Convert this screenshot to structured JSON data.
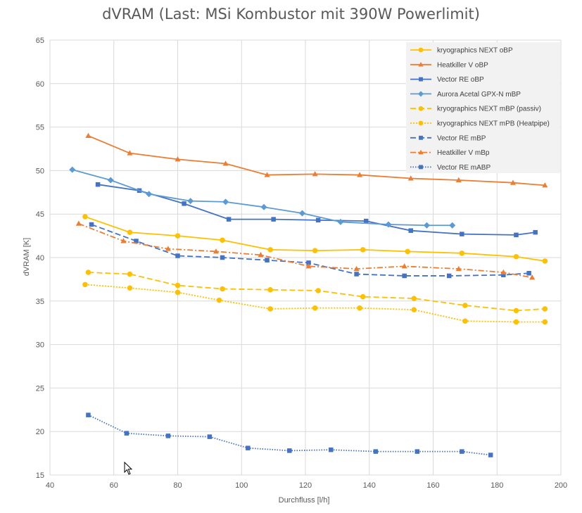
{
  "chart_data": {
    "type": "line",
    "title": "dVRAM (Last: MSi Kombustor mit 390W Powerlimit)",
    "xlabel": "Durchfluss [l/h]",
    "ylabel": "dVRAM [K]",
    "xlim": [
      40,
      200
    ],
    "ylim": [
      15,
      65
    ],
    "xticks": [
      40,
      60,
      80,
      100,
      120,
      140,
      160,
      180,
      200
    ],
    "yticks": [
      15,
      20,
      25,
      30,
      35,
      40,
      45,
      50,
      55,
      60,
      65
    ],
    "grid": "vertical and horizontal",
    "legend_position": "top-right",
    "series": [
      {
        "name": "kryographics NEXT oBP",
        "color": "#FFC000",
        "dash": "solid",
        "marker": "circle",
        "x": [
          51,
          65,
          80,
          94,
          109,
          123,
          138,
          152,
          169,
          186,
          195
        ],
        "y": [
          44.7,
          42.9,
          42.5,
          42.0,
          40.9,
          40.8,
          40.9,
          40.7,
          40.5,
          40.1,
          39.6
        ]
      },
      {
        "name": "Heatkiller V oBP",
        "color": "#ED7D31",
        "dash": "solid",
        "marker": "triangle",
        "x": [
          52,
          65,
          80,
          95,
          108,
          123,
          137,
          153,
          168,
          185,
          195
        ],
        "y": [
          54.0,
          52.0,
          51.3,
          50.8,
          49.5,
          49.6,
          49.5,
          49.1,
          48.9,
          48.6,
          48.3
        ]
      },
      {
        "name": "Vector RE oBP",
        "color": "#4472C4",
        "dash": "solid",
        "marker": "square",
        "x": [
          55,
          68,
          82,
          96,
          110,
          124,
          139,
          153,
          169,
          186,
          192
        ],
        "y": [
          48.4,
          47.7,
          46.2,
          44.4,
          44.4,
          44.3,
          44.2,
          43.1,
          42.7,
          42.6,
          42.9
        ]
      },
      {
        "name": "Aurora Acetal GPX-N mBP",
        "color": "#5B9BD5",
        "dash": "solid",
        "marker": "diamond",
        "x": [
          47,
          59,
          71,
          84,
          95,
          107,
          119,
          131,
          146,
          158,
          166
        ],
        "y": [
          50.1,
          48.9,
          47.3,
          46.5,
          46.4,
          45.8,
          45.1,
          44.1,
          43.8,
          43.7,
          43.7
        ]
      },
      {
        "name": "kryographics NEXT mBP (passiv)",
        "color": "#FFC000",
        "dash": "dashed",
        "marker": "circle",
        "x": [
          52,
          65,
          80,
          94,
          109,
          124,
          138,
          154,
          170,
          186,
          195
        ],
        "y": [
          38.3,
          38.1,
          36.8,
          36.4,
          36.3,
          36.2,
          35.5,
          35.3,
          34.5,
          33.9,
          34.1
        ]
      },
      {
        "name": "kryographics NEXT mPB (Heatpipe)",
        "color": "#FFC000",
        "dash": "dotted",
        "marker": "circle",
        "x": [
          51,
          65,
          80,
          93,
          109,
          123,
          137,
          154,
          170,
          186,
          195
        ],
        "y": [
          36.9,
          36.5,
          36.0,
          35.1,
          34.1,
          34.2,
          34.2,
          34.0,
          32.7,
          32.6,
          32.6
        ]
      },
      {
        "name": "Vector RE mBP",
        "color": "#4472C4",
        "dash": "dashed",
        "marker": "square",
        "x": [
          53,
          67,
          80,
          94,
          108,
          121,
          136,
          151,
          165,
          182,
          190
        ],
        "y": [
          43.8,
          41.9,
          40.2,
          40.0,
          39.7,
          39.4,
          38.1,
          37.9,
          37.9,
          38.0,
          38.2
        ]
      },
      {
        "name": "Heatkiller V mBp",
        "color": "#ED7D31",
        "dash": "dashdot",
        "marker": "triangle",
        "x": [
          49,
          63,
          77,
          92,
          106,
          121,
          136,
          151,
          168,
          182,
          191
        ],
        "y": [
          43.9,
          41.9,
          41.0,
          40.7,
          40.3,
          39.0,
          38.7,
          39.0,
          38.7,
          38.3,
          37.7
        ]
      },
      {
        "name": "Vector RE mABP",
        "color": "#4472C4",
        "dash": "fine-dotted",
        "marker": "square",
        "x": [
          52,
          64,
          77,
          90,
          102,
          115,
          128,
          142,
          155,
          169,
          178
        ],
        "y": [
          21.9,
          19.8,
          19.5,
          19.4,
          18.1,
          17.8,
          17.9,
          17.7,
          17.7,
          17.7,
          17.3
        ]
      }
    ]
  }
}
